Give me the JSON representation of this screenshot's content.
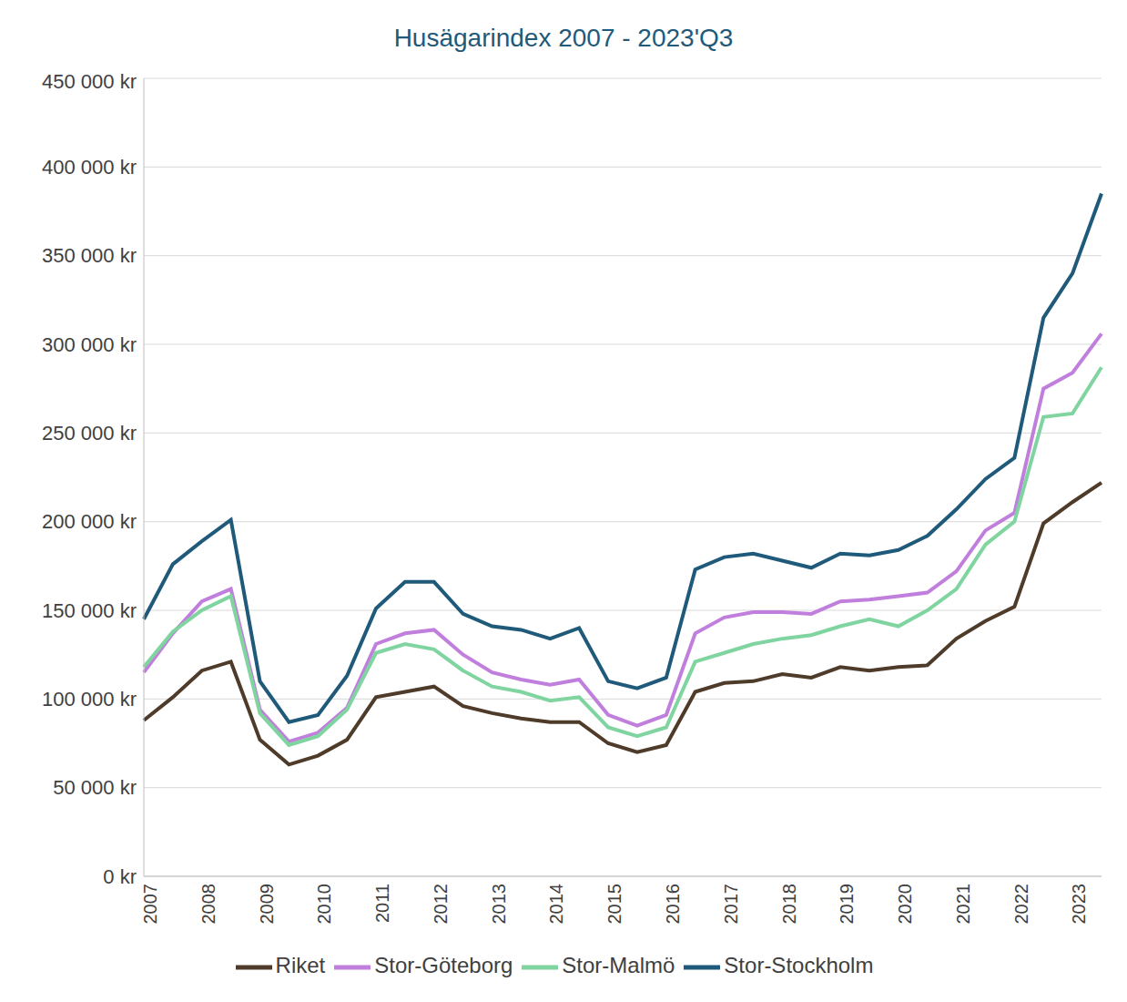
{
  "chart_data": {
    "type": "line",
    "title": "Husägarindex 2007 - 2023'Q3",
    "categories": [
      "2007",
      null,
      "2008",
      null,
      "2009",
      null,
      "2010",
      null,
      "2011",
      null,
      "2012",
      null,
      "2013",
      null,
      "2014",
      null,
      "2015",
      null,
      "2016",
      null,
      "2017",
      null,
      "2018",
      null,
      "2019",
      null,
      "2020",
      null,
      "2021",
      null,
      "2022",
      null,
      "2023",
      null
    ],
    "series": [
      {
        "name": "Stor-Stockholm",
        "color": "#1f5a7a",
        "values": [
          145000,
          176000,
          189000,
          201000,
          110000,
          87000,
          91000,
          113000,
          151000,
          166000,
          166000,
          148000,
          141000,
          139000,
          134000,
          140000,
          110000,
          106000,
          112000,
          173000,
          180000,
          182000,
          178000,
          174000,
          182000,
          181000,
          184000,
          192000,
          207000,
          224000,
          236000,
          315000,
          340000,
          385000
        ]
      },
      {
        "name": "Stor-Göteborg",
        "color": "#c07fdc",
        "values": [
          115000,
          137000,
          155000,
          162000,
          94000,
          76000,
          81000,
          95000,
          131000,
          137000,
          139000,
          125000,
          115000,
          111000,
          108000,
          111000,
          91000,
          85000,
          91000,
          137000,
          146000,
          149000,
          149000,
          148000,
          155000,
          156000,
          158000,
          160000,
          172000,
          195000,
          205000,
          275000,
          284000,
          306000
        ]
      },
      {
        "name": "Stor-Malmö",
        "color": "#7fd4a0",
        "values": [
          118000,
          138000,
          150000,
          158000,
          92000,
          74000,
          79000,
          94000,
          126000,
          131000,
          128000,
          116000,
          107000,
          104000,
          99000,
          101000,
          84000,
          79000,
          84000,
          121000,
          126000,
          131000,
          134000,
          136000,
          141000,
          145000,
          141000,
          150000,
          162000,
          187000,
          200000,
          259000,
          261000,
          287000
        ]
      },
      {
        "name": "Riket",
        "color": "#4e3b2a",
        "values": [
          88000,
          101000,
          116000,
          121000,
          77000,
          63000,
          68000,
          77000,
          101000,
          104000,
          107000,
          96000,
          92000,
          89000,
          87000,
          87000,
          75000,
          70000,
          74000,
          104000,
          109000,
          110000,
          114000,
          112000,
          118000,
          116000,
          118000,
          119000,
          134000,
          144000,
          152000,
          199000,
          211000,
          222000
        ]
      }
    ],
    "ylim": [
      0,
      450000
    ],
    "yticks": [
      {
        "value": 0,
        "label": "0 kr"
      },
      {
        "value": 50000,
        "label": "50 000 kr"
      },
      {
        "value": 100000,
        "label": "100 000 kr"
      },
      {
        "value": 150000,
        "label": "150 000 kr"
      },
      {
        "value": 200000,
        "label": "200 000 kr"
      },
      {
        "value": 250000,
        "label": "250 000 kr"
      },
      {
        "value": 300000,
        "label": "300 000 kr"
      },
      {
        "value": 350000,
        "label": "350 000 kr"
      },
      {
        "value": 400000,
        "label": "400 000 kr"
      },
      {
        "value": 450000,
        "label": "450 000 kr"
      }
    ],
    "grid": true,
    "legend": "bottom"
  }
}
